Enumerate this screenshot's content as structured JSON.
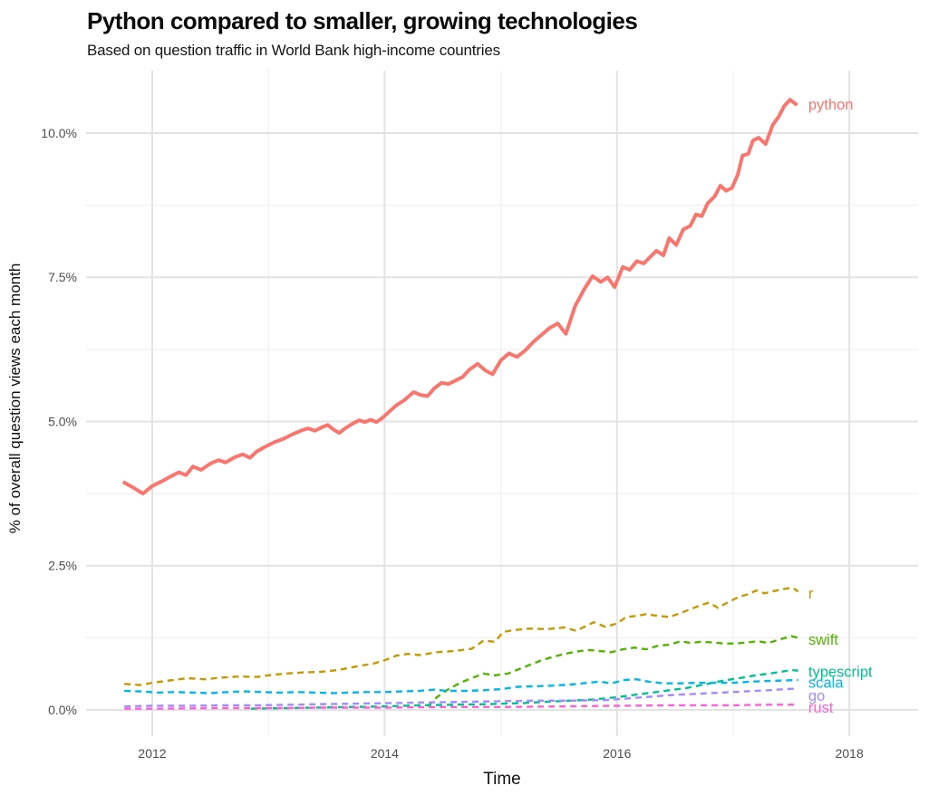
{
  "chart_data": {
    "type": "line",
    "title": "Python compared to smaller, growing technologies",
    "subtitle": "Based on question traffic in World Bank high-income countries",
    "xlabel": "Time",
    "ylabel": "% of overall question views each month",
    "xlim": [
      2011.45,
      2018.6
    ],
    "ylim": [
      -0.45,
      11.05
    ],
    "grid": true,
    "legend": "line-end-labels",
    "x_ticks": [
      2012,
      2014,
      2016,
      2018
    ],
    "x_tick_labels": [
      "2012",
      "2014",
      "2016",
      "2018"
    ],
    "x_minor_ticks": [
      2013,
      2015,
      2017
    ],
    "y_ticks": [
      0,
      2.5,
      5,
      7.5,
      10
    ],
    "y_tick_labels": [
      "0.0%",
      "2.5%",
      "5.0%",
      "7.5%",
      "10.0%"
    ],
    "y_minor_ticks": [
      1.25,
      3.75,
      6.25,
      8.75
    ],
    "colors": {
      "grid_major": "#E3E3E3",
      "grid_minor": "#F0F0F0",
      "tick_text": "#4d4d4d"
    },
    "series": [
      {
        "name": "r",
        "label": "r",
        "color": "#C49A00",
        "line_style": "dashed",
        "points": [
          [
            2011.76,
            0.45
          ],
          [
            2011.9,
            0.43
          ],
          [
            2012.0,
            0.47
          ],
          [
            2012.15,
            0.51
          ],
          [
            2012.3,
            0.55
          ],
          [
            2012.45,
            0.53
          ],
          [
            2012.6,
            0.56
          ],
          [
            2012.75,
            0.58
          ],
          [
            2012.9,
            0.57
          ],
          [
            2013.0,
            0.6
          ],
          [
            2013.15,
            0.63
          ],
          [
            2013.3,
            0.65
          ],
          [
            2013.45,
            0.66
          ],
          [
            2013.6,
            0.69
          ],
          [
            2013.75,
            0.75
          ],
          [
            2013.9,
            0.8
          ],
          [
            2014.0,
            0.86
          ],
          [
            2014.1,
            0.94
          ],
          [
            2014.2,
            0.97
          ],
          [
            2014.3,
            0.95
          ],
          [
            2014.45,
            1.0
          ],
          [
            2014.6,
            1.02
          ],
          [
            2014.75,
            1.06
          ],
          [
            2014.85,
            1.2
          ],
          [
            2014.95,
            1.18
          ],
          [
            2015.02,
            1.35
          ],
          [
            2015.1,
            1.38
          ],
          [
            2015.25,
            1.41
          ],
          [
            2015.4,
            1.4
          ],
          [
            2015.55,
            1.43
          ],
          [
            2015.65,
            1.37
          ],
          [
            2015.73,
            1.45
          ],
          [
            2015.8,
            1.52
          ],
          [
            2015.9,
            1.44
          ],
          [
            2016.0,
            1.5
          ],
          [
            2016.08,
            1.61
          ],
          [
            2016.17,
            1.63
          ],
          [
            2016.25,
            1.66
          ],
          [
            2016.35,
            1.63
          ],
          [
            2016.45,
            1.61
          ],
          [
            2016.55,
            1.68
          ],
          [
            2016.65,
            1.76
          ],
          [
            2016.73,
            1.82
          ],
          [
            2016.79,
            1.86
          ],
          [
            2016.87,
            1.77
          ],
          [
            2016.95,
            1.86
          ],
          [
            2017.05,
            1.96
          ],
          [
            2017.12,
            2.0
          ],
          [
            2017.2,
            2.07
          ],
          [
            2017.27,
            2.02
          ],
          [
            2017.35,
            2.06
          ],
          [
            2017.45,
            2.1
          ],
          [
            2017.51,
            2.12
          ],
          [
            2017.56,
            2.05
          ]
        ]
      },
      {
        "name": "swift",
        "label": "swift",
        "color": "#53B400",
        "line_style": "dashed",
        "points": [
          [
            2014.37,
            0.06
          ],
          [
            2014.45,
            0.22
          ],
          [
            2014.55,
            0.36
          ],
          [
            2014.65,
            0.47
          ],
          [
            2014.75,
            0.55
          ],
          [
            2014.85,
            0.63
          ],
          [
            2014.95,
            0.6
          ],
          [
            2015.06,
            0.63
          ],
          [
            2015.15,
            0.7
          ],
          [
            2015.25,
            0.78
          ],
          [
            2015.35,
            0.86
          ],
          [
            2015.45,
            0.92
          ],
          [
            2015.55,
            0.97
          ],
          [
            2015.65,
            1.01
          ],
          [
            2015.75,
            1.04
          ],
          [
            2015.85,
            1.02
          ],
          [
            2015.95,
            1.0
          ],
          [
            2016.05,
            1.05
          ],
          [
            2016.15,
            1.08
          ],
          [
            2016.25,
            1.05
          ],
          [
            2016.35,
            1.11
          ],
          [
            2016.45,
            1.13
          ],
          [
            2016.55,
            1.19
          ],
          [
            2016.63,
            1.16
          ],
          [
            2016.72,
            1.18
          ],
          [
            2016.82,
            1.17
          ],
          [
            2016.92,
            1.15
          ],
          [
            2017.02,
            1.15
          ],
          [
            2017.12,
            1.17
          ],
          [
            2017.22,
            1.19
          ],
          [
            2017.3,
            1.16
          ],
          [
            2017.4,
            1.22
          ],
          [
            2017.5,
            1.28
          ],
          [
            2017.56,
            1.25
          ]
        ]
      },
      {
        "name": "typescript",
        "label": "typescript",
        "color": "#00C094",
        "line_style": "dashed",
        "points": [
          [
            2012.85,
            0.02
          ],
          [
            2013.1,
            0.03
          ],
          [
            2013.4,
            0.04
          ],
          [
            2013.7,
            0.05
          ],
          [
            2014.0,
            0.06
          ],
          [
            2014.3,
            0.08
          ],
          [
            2014.6,
            0.09
          ],
          [
            2014.9,
            0.1
          ],
          [
            2015.2,
            0.12
          ],
          [
            2015.5,
            0.15
          ],
          [
            2015.8,
            0.18
          ],
          [
            2016.0,
            0.22
          ],
          [
            2016.15,
            0.26
          ],
          [
            2016.3,
            0.3
          ],
          [
            2016.45,
            0.34
          ],
          [
            2016.6,
            0.38
          ],
          [
            2016.75,
            0.44
          ],
          [
            2016.9,
            0.5
          ],
          [
            2017.05,
            0.55
          ],
          [
            2017.2,
            0.6
          ],
          [
            2017.35,
            0.64
          ],
          [
            2017.5,
            0.69
          ],
          [
            2017.56,
            0.68
          ]
        ]
      },
      {
        "name": "scala",
        "label": "scala",
        "color": "#00B6EB",
        "line_style": "dashed",
        "points": [
          [
            2011.76,
            0.33
          ],
          [
            2011.9,
            0.32
          ],
          [
            2012.05,
            0.3
          ],
          [
            2012.2,
            0.31
          ],
          [
            2012.35,
            0.3
          ],
          [
            2012.5,
            0.29
          ],
          [
            2012.65,
            0.31
          ],
          [
            2012.8,
            0.32
          ],
          [
            2012.95,
            0.31
          ],
          [
            2013.1,
            0.3
          ],
          [
            2013.25,
            0.31
          ],
          [
            2013.4,
            0.3
          ],
          [
            2013.55,
            0.29
          ],
          [
            2013.7,
            0.3
          ],
          [
            2013.85,
            0.31
          ],
          [
            2014.0,
            0.31
          ],
          [
            2014.15,
            0.32
          ],
          [
            2014.3,
            0.33
          ],
          [
            2014.42,
            0.35
          ],
          [
            2014.55,
            0.33
          ],
          [
            2014.7,
            0.33
          ],
          [
            2014.85,
            0.34
          ],
          [
            2015.0,
            0.36
          ],
          [
            2015.15,
            0.4
          ],
          [
            2015.3,
            0.41
          ],
          [
            2015.45,
            0.42
          ],
          [
            2015.6,
            0.44
          ],
          [
            2015.75,
            0.47
          ],
          [
            2015.85,
            0.49
          ],
          [
            2015.95,
            0.46
          ],
          [
            2016.07,
            0.52
          ],
          [
            2016.17,
            0.53
          ],
          [
            2016.27,
            0.49
          ],
          [
            2016.4,
            0.46
          ],
          [
            2016.55,
            0.46
          ],
          [
            2016.7,
            0.47
          ],
          [
            2016.85,
            0.47
          ],
          [
            2017.0,
            0.47
          ],
          [
            2017.15,
            0.49
          ],
          [
            2017.3,
            0.5
          ],
          [
            2017.45,
            0.51
          ],
          [
            2017.56,
            0.52
          ]
        ]
      },
      {
        "name": "go",
        "label": "go",
        "color": "#A58AFF",
        "line_style": "dashed",
        "points": [
          [
            2011.76,
            0.06
          ],
          [
            2012.0,
            0.07
          ],
          [
            2012.3,
            0.07
          ],
          [
            2012.6,
            0.08
          ],
          [
            2012.9,
            0.08
          ],
          [
            2013.2,
            0.09
          ],
          [
            2013.5,
            0.1
          ],
          [
            2013.8,
            0.11
          ],
          [
            2014.1,
            0.12
          ],
          [
            2014.4,
            0.13
          ],
          [
            2014.7,
            0.14
          ],
          [
            2015.0,
            0.15
          ],
          [
            2015.3,
            0.16
          ],
          [
            2015.6,
            0.16
          ],
          [
            2015.9,
            0.17
          ],
          [
            2016.1,
            0.2
          ],
          [
            2016.3,
            0.23
          ],
          [
            2016.5,
            0.26
          ],
          [
            2016.7,
            0.28
          ],
          [
            2016.9,
            0.3
          ],
          [
            2017.1,
            0.32
          ],
          [
            2017.3,
            0.34
          ],
          [
            2017.45,
            0.36
          ],
          [
            2017.56,
            0.37
          ]
        ]
      },
      {
        "name": "rust",
        "label": "rust",
        "color": "#FB61D7",
        "line_style": "dashed",
        "points": [
          [
            2011.76,
            0.02
          ],
          [
            2012.0,
            0.02
          ],
          [
            2012.5,
            0.03
          ],
          [
            2013.0,
            0.03
          ],
          [
            2013.5,
            0.04
          ],
          [
            2014.0,
            0.04
          ],
          [
            2014.5,
            0.05
          ],
          [
            2015.0,
            0.05
          ],
          [
            2015.5,
            0.06
          ],
          [
            2016.0,
            0.07
          ],
          [
            2016.5,
            0.08
          ],
          [
            2017.0,
            0.08
          ],
          [
            2017.3,
            0.09
          ],
          [
            2017.56,
            0.09
          ]
        ]
      },
      {
        "name": "python",
        "label": "python",
        "color": "#F8766D",
        "line_style": "solid",
        "points": [
          [
            2011.76,
            3.94
          ],
          [
            2011.84,
            3.85
          ],
          [
            2011.92,
            3.75
          ],
          [
            2012.0,
            3.88
          ],
          [
            2012.09,
            3.97
          ],
          [
            2012.17,
            4.06
          ],
          [
            2012.23,
            4.12
          ],
          [
            2012.29,
            4.07
          ],
          [
            2012.35,
            4.22
          ],
          [
            2012.42,
            4.16
          ],
          [
            2012.5,
            4.27
          ],
          [
            2012.57,
            4.33
          ],
          [
            2012.63,
            4.29
          ],
          [
            2012.71,
            4.38
          ],
          [
            2012.78,
            4.43
          ],
          [
            2012.84,
            4.37
          ],
          [
            2012.9,
            4.48
          ],
          [
            2012.97,
            4.56
          ],
          [
            2013.05,
            4.64
          ],
          [
            2013.13,
            4.7
          ],
          [
            2013.21,
            4.78
          ],
          [
            2013.29,
            4.85
          ],
          [
            2013.34,
            4.88
          ],
          [
            2013.4,
            4.84
          ],
          [
            2013.46,
            4.9
          ],
          [
            2013.51,
            4.94
          ],
          [
            2013.56,
            4.86
          ],
          [
            2013.61,
            4.8
          ],
          [
            2013.66,
            4.88
          ],
          [
            2013.73,
            4.97
          ],
          [
            2013.78,
            5.02
          ],
          [
            2013.83,
            4.99
          ],
          [
            2013.88,
            5.03
          ],
          [
            2013.93,
            4.99
          ],
          [
            2013.98,
            5.06
          ],
          [
            2014.04,
            5.17
          ],
          [
            2014.1,
            5.28
          ],
          [
            2014.17,
            5.37
          ],
          [
            2014.25,
            5.51
          ],
          [
            2014.31,
            5.46
          ],
          [
            2014.37,
            5.44
          ],
          [
            2014.43,
            5.58
          ],
          [
            2014.49,
            5.67
          ],
          [
            2014.55,
            5.65
          ],
          [
            2014.61,
            5.71
          ],
          [
            2014.67,
            5.77
          ],
          [
            2014.73,
            5.9
          ],
          [
            2014.8,
            6.0
          ],
          [
            2014.87,
            5.88
          ],
          [
            2014.93,
            5.82
          ],
          [
            2015.0,
            6.06
          ],
          [
            2015.07,
            6.18
          ],
          [
            2015.14,
            6.12
          ],
          [
            2015.21,
            6.23
          ],
          [
            2015.28,
            6.38
          ],
          [
            2015.35,
            6.5
          ],
          [
            2015.42,
            6.62
          ],
          [
            2015.49,
            6.7
          ],
          [
            2015.56,
            6.52
          ],
          [
            2015.64,
            7.0
          ],
          [
            2015.72,
            7.3
          ],
          [
            2015.79,
            7.52
          ],
          [
            2015.86,
            7.42
          ],
          [
            2015.92,
            7.5
          ],
          [
            2015.98,
            7.33
          ],
          [
            2016.05,
            7.68
          ],
          [
            2016.11,
            7.63
          ],
          [
            2016.17,
            7.78
          ],
          [
            2016.23,
            7.74
          ],
          [
            2016.28,
            7.84
          ],
          [
            2016.34,
            7.96
          ],
          [
            2016.4,
            7.88
          ],
          [
            2016.45,
            8.18
          ],
          [
            2016.51,
            8.06
          ],
          [
            2016.57,
            8.33
          ],
          [
            2016.63,
            8.39
          ],
          [
            2016.68,
            8.59
          ],
          [
            2016.73,
            8.56
          ],
          [
            2016.78,
            8.78
          ],
          [
            2016.84,
            8.9
          ],
          [
            2016.89,
            9.09
          ],
          [
            2016.94,
            9.0
          ],
          [
            2016.99,
            9.05
          ],
          [
            2017.04,
            9.28
          ],
          [
            2017.08,
            9.61
          ],
          [
            2017.13,
            9.64
          ],
          [
            2017.17,
            9.87
          ],
          [
            2017.22,
            9.92
          ],
          [
            2017.28,
            9.81
          ],
          [
            2017.34,
            10.14
          ],
          [
            2017.39,
            10.28
          ],
          [
            2017.44,
            10.47
          ],
          [
            2017.49,
            10.58
          ],
          [
            2017.54,
            10.5
          ]
        ]
      }
    ]
  }
}
